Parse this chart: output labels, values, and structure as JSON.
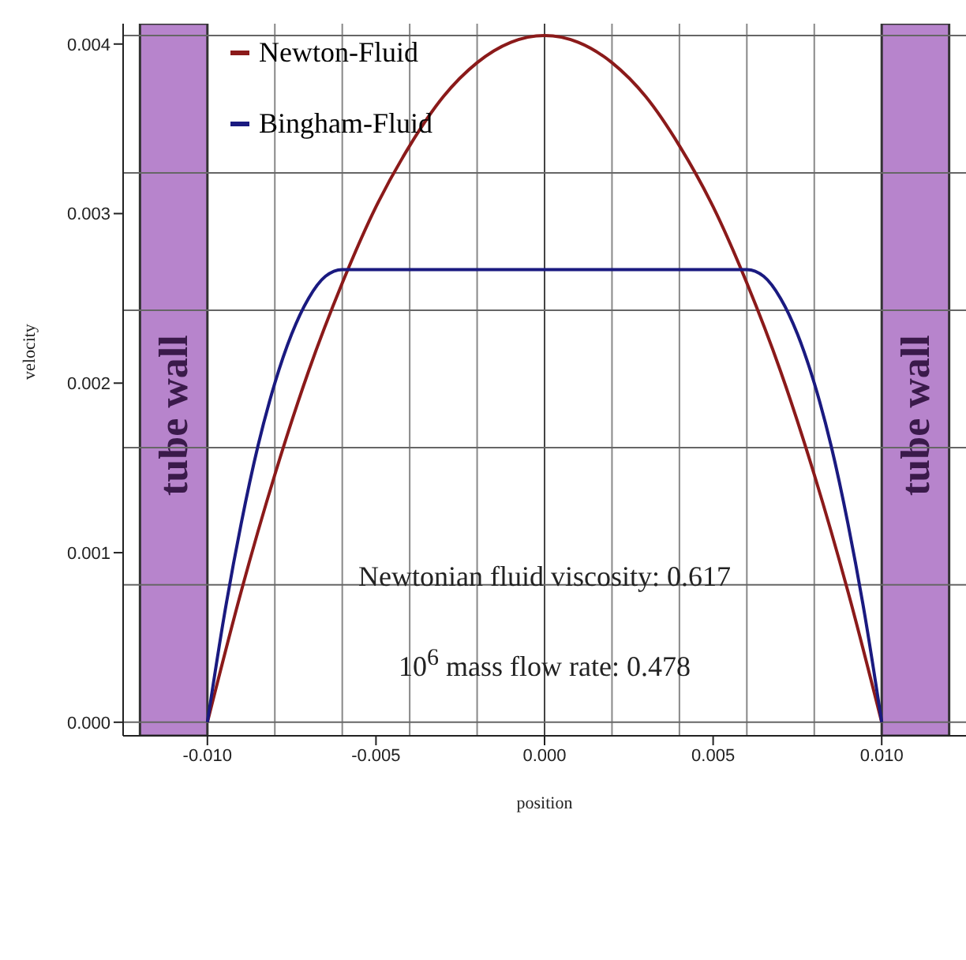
{
  "chart_data": {
    "type": "line",
    "xlabel": "position",
    "ylabel": "velocity",
    "series": [
      {
        "name": "Newton-Fluid",
        "color": "#8b1a1a",
        "x": [
          -0.01,
          -0.009,
          -0.008,
          -0.007,
          -0.006,
          -0.005,
          -0.004,
          -0.003,
          -0.002,
          -0.001,
          0,
          0.001,
          0.002,
          0.003,
          0.004,
          0.005,
          0.006,
          0.007,
          0.008,
          0.009,
          0.01
        ],
        "values": [
          0,
          0.00077,
          0.00146,
          0.00207,
          0.00259,
          0.00304,
          0.0034,
          0.00369,
          0.00389,
          0.00401,
          0.00405,
          0.00401,
          0.00389,
          0.00369,
          0.0034,
          0.00304,
          0.00259,
          0.00207,
          0.00146,
          0.00077,
          0
        ]
      },
      {
        "name": "Bingham-Fluid",
        "color": "#1a1a80",
        "x": [
          -0.01,
          -0.0095,
          -0.009,
          -0.0085,
          -0.008,
          -0.0075,
          -0.007,
          -0.0065,
          -0.006,
          0.006,
          0.0065,
          0.007,
          0.0075,
          0.008,
          0.0085,
          0.009,
          0.0095,
          0.01
        ],
        "values": [
          0,
          0.00063,
          0.00117,
          0.00163,
          0.002,
          0.00229,
          0.0025,
          0.00263,
          0.00267,
          0.00267,
          0.00263,
          0.0025,
          0.00229,
          0.002,
          0.00163,
          0.00117,
          0.00063,
          0
        ]
      }
    ],
    "xlim": [
      -0.0125,
      0.0125
    ],
    "xticks": [
      {
        "value": -0.01,
        "label": "-0.010"
      },
      {
        "value": -0.005,
        "label": "-0.005"
      },
      {
        "value": 0,
        "label": "0.000"
      },
      {
        "value": 0.005,
        "label": "0.005"
      },
      {
        "value": 0.01,
        "label": "0.010"
      }
    ],
    "ylim": [
      -8e-05,
      0.00412
    ],
    "yticks": [
      {
        "value": 0,
        "label": "0.000"
      },
      {
        "value": 0.001,
        "label": "0.001"
      },
      {
        "value": 0.002,
        "label": "0.002"
      },
      {
        "value": 0.003,
        "label": "0.003"
      },
      {
        "value": 0.004,
        "label": "0.004"
      }
    ],
    "bands": [
      {
        "axis": "x",
        "from": -0.012,
        "to": -0.01,
        "label": "tube wall",
        "color": "#b784cc"
      },
      {
        "axis": "x",
        "from": 0.01,
        "to": 0.012,
        "label": "tube wall",
        "color": "#b784cc"
      }
    ],
    "ref_lines": [
      {
        "axis": "x",
        "value": -0.008,
        "color": "#888888"
      },
      {
        "axis": "x",
        "value": -0.006,
        "color": "#888888"
      },
      {
        "axis": "x",
        "value": -0.004,
        "color": "#888888"
      },
      {
        "axis": "x",
        "value": -0.002,
        "color": "#888888"
      },
      {
        "axis": "x",
        "value": 0,
        "color": "#444444"
      },
      {
        "axis": "x",
        "value": 0.002,
        "color": "#888888"
      },
      {
        "axis": "x",
        "value": 0.004,
        "color": "#888888"
      },
      {
        "axis": "x",
        "value": 0.006,
        "color": "#888888"
      },
      {
        "axis": "x",
        "value": 0.008,
        "color": "#888888"
      },
      {
        "axis": "y",
        "value": 0,
        "color": "#666666"
      },
      {
        "axis": "y",
        "value": 0.00081,
        "color": "#666666"
      },
      {
        "axis": "y",
        "value": 0.00162,
        "color": "#666666"
      },
      {
        "axis": "y",
        "value": 0.00243,
        "color": "#666666"
      },
      {
        "axis": "y",
        "value": 0.00324,
        "color": "#666666"
      },
      {
        "axis": "y",
        "value": 0.00405,
        "color": "#666666"
      }
    ],
    "annotations": [
      "Newtonian fluid viscosity: 0.617",
      "10$^{6}$ mass flow rate: 0.478"
    ],
    "legend": "top left",
    "line_style": "solid",
    "marker": "none"
  }
}
